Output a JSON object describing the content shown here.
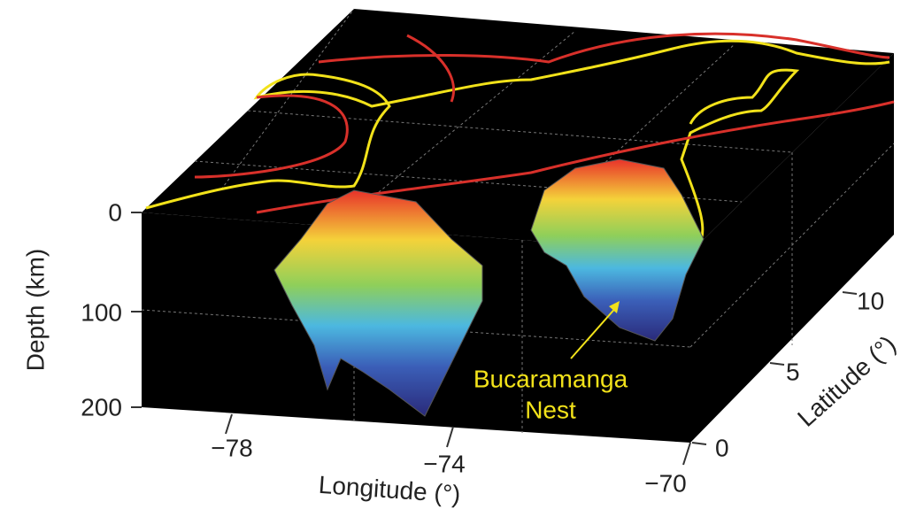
{
  "axes": {
    "depth": {
      "label": "Depth (km)",
      "ticks": [
        "0",
        "100",
        "200"
      ]
    },
    "longitude": {
      "label": "Longitude (°)",
      "ticks": [
        "−78",
        "−74",
        "−70"
      ]
    },
    "latitude": {
      "label": "Latitude (°)",
      "ticks": [
        "0",
        "5",
        "10"
      ]
    }
  },
  "annotation": {
    "lines": [
      "Bucaramanga",
      "Nest"
    ]
  }
}
